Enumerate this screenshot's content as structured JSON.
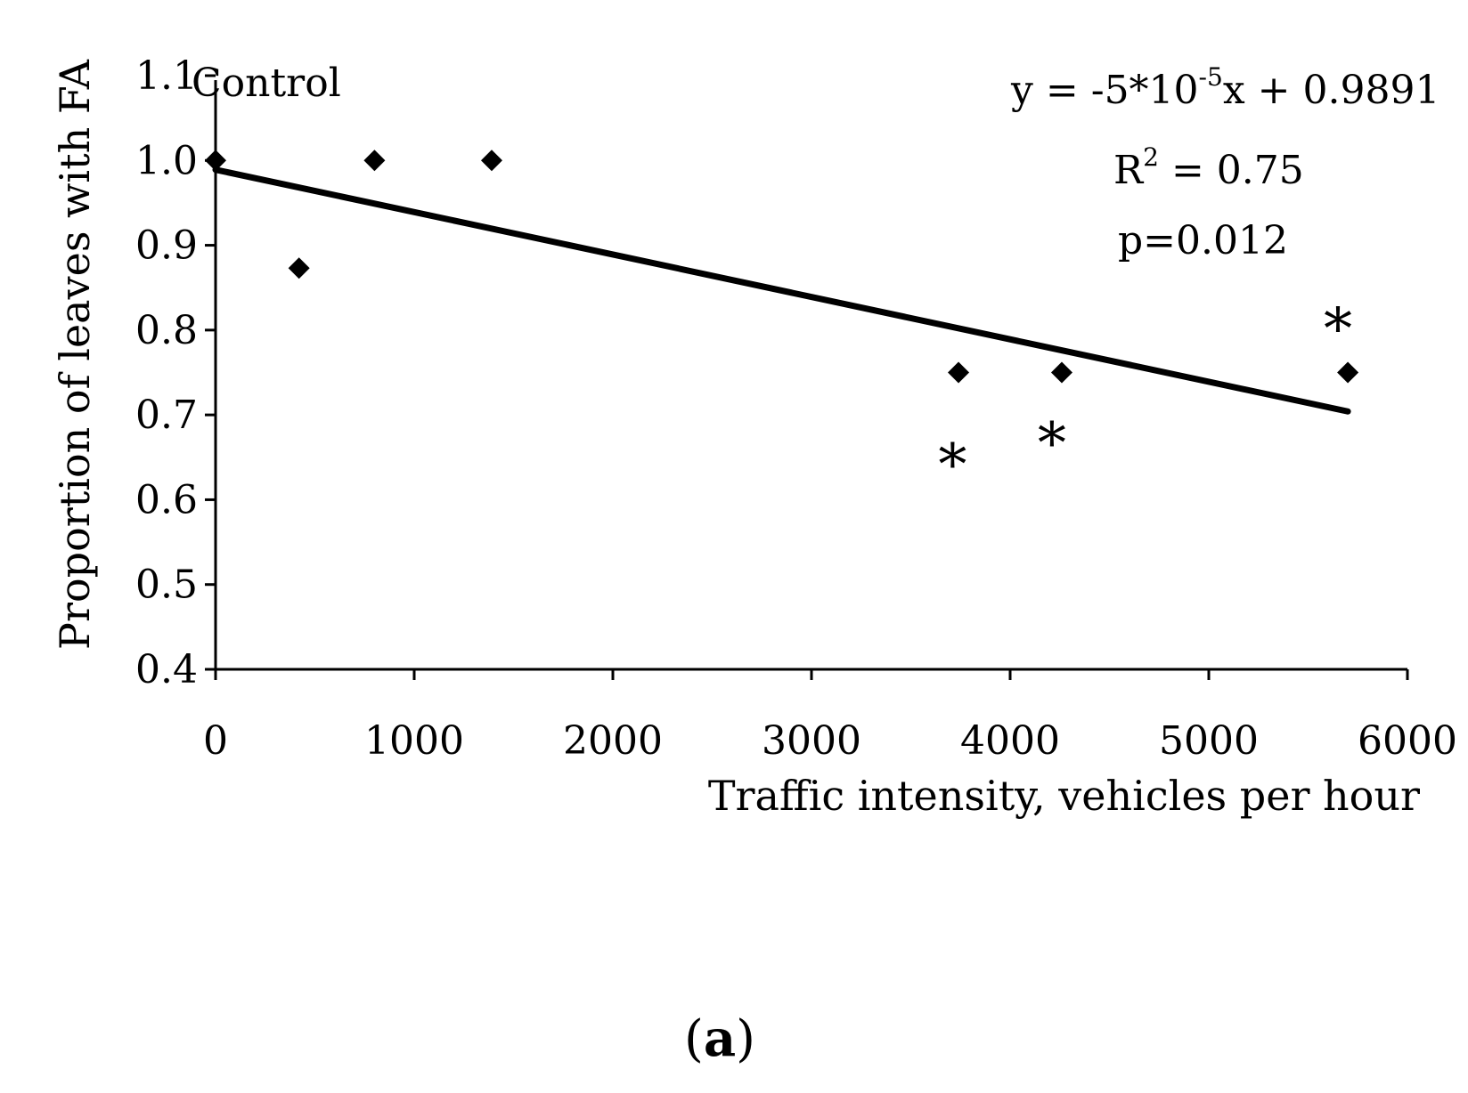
{
  "chart_data": {
    "type": "scatter",
    "title": "",
    "xlabel": "Traffic intensity, vehicles per hour",
    "ylabel": "Proportion of leaves with FA",
    "xlim": [
      0,
      6000
    ],
    "ylim": [
      0.4,
      1.1
    ],
    "x_ticks": [
      "0",
      "1000",
      "2000",
      "3000",
      "4000",
      "5000",
      "6000"
    ],
    "y_ticks": [
      "0.4",
      "0.5",
      "0.6",
      "0.7",
      "0.8",
      "0.9",
      "1.0",
      "1.1"
    ],
    "grid": false,
    "series": [
      {
        "name": "Proportion of leaves with FA",
        "marker": "diamond",
        "points": [
          {
            "x": 0,
            "y": 1.0
          },
          {
            "x": 420,
            "y": 0.873
          },
          {
            "x": 800,
            "y": 1.0
          },
          {
            "x": 1390,
            "y": 1.0
          },
          {
            "x": 3740,
            "y": 0.75
          },
          {
            "x": 4260,
            "y": 0.75
          },
          {
            "x": 5700,
            "y": 0.75
          }
        ]
      }
    ],
    "trendline": {
      "slope": -5e-05,
      "intercept": 0.9891,
      "x_range": [
        0,
        5700
      ]
    },
    "significance_markers": [
      {
        "symbol": "*",
        "x": 3710,
        "y": 0.65
      },
      {
        "symbol": "*",
        "x": 4210,
        "y": 0.675
      },
      {
        "symbol": "*",
        "x": 5650,
        "y": 0.81
      }
    ],
    "annotations": {
      "control": "Control",
      "eq_prefix": "y = -5*10",
      "eq_exponent": "-5",
      "eq_suffix": "x + 0.9891",
      "r2_base": "R",
      "r2_exponent": "2",
      "r2_suffix": " = 0.75",
      "p_value": "p=0.012"
    },
    "panel_label": {
      "open": "(",
      "letter": "a",
      "close": ")"
    }
  }
}
